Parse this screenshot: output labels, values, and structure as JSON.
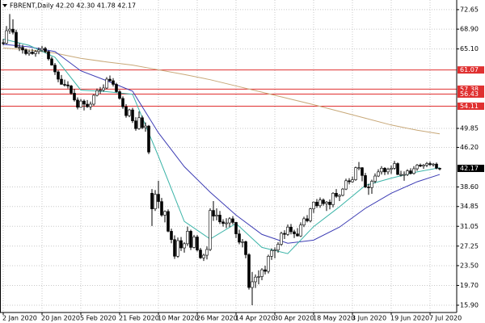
{
  "chart_data": {
    "type": "candlestick",
    "title": "FBRENT,Daily 42.20 42.30 41.78 42.17",
    "categories": [
      "2 Jan 2020",
      null,
      null,
      null,
      null,
      null,
      null,
      null,
      null,
      null,
      null,
      null,
      "20 Jan 2020",
      null,
      null,
      null,
      null,
      null,
      null,
      null,
      null,
      null,
      null,
      null,
      "5 Feb 2020",
      null,
      null,
      null,
      null,
      null,
      null,
      null,
      null,
      null,
      null,
      null,
      "21 Feb 2020",
      null,
      null,
      null,
      null,
      null,
      null,
      null,
      null,
      null,
      null,
      null,
      "10 Mar 2020",
      null,
      null,
      null,
      null,
      null,
      null,
      null,
      null,
      null,
      null,
      null,
      "26 Mar 2020",
      null,
      null,
      null,
      null,
      null,
      null,
      null,
      null,
      null,
      null,
      null,
      "14 Apr 2020",
      null,
      null,
      null,
      null,
      null,
      null,
      null,
      null,
      null,
      null,
      null,
      "30 Apr 2020",
      null,
      null,
      null,
      null,
      null,
      null,
      null,
      null,
      null,
      null,
      null,
      "18 May 2020",
      null,
      null,
      null,
      null,
      null,
      null,
      null,
      null,
      null,
      null,
      null,
      "3 Jun 2020",
      null,
      null,
      null,
      null,
      null,
      null,
      null,
      null,
      null,
      null,
      null,
      "19 Jun 2020",
      null,
      null,
      null,
      null,
      null,
      null,
      null,
      null,
      null,
      null,
      null,
      "7 Jul 2020",
      null,
      null,
      null
    ],
    "ohlc": [
      [
        66.3,
        67.0,
        65.8,
        66.2
      ],
      [
        66.2,
        69.5,
        66.0,
        68.6
      ],
      [
        68.6,
        71.8,
        68.0,
        68.9
      ],
      [
        68.9,
        70.8,
        67.9,
        68.3
      ],
      [
        68.3,
        68.8,
        65.3,
        65.4
      ],
      [
        65.4,
        66.2,
        64.7,
        65.4
      ],
      [
        65.4,
        65.9,
        64.2,
        64.9
      ],
      [
        64.9,
        65.2,
        63.9,
        64.2
      ],
      [
        64.2,
        64.9,
        63.8,
        64.5
      ],
      [
        64.5,
        65.1,
        64.0,
        64.2
      ],
      [
        64.2,
        64.9,
        63.6,
        64.6
      ],
      [
        64.6,
        65.4,
        64.1,
        64.9
      ],
      [
        64.9,
        65.7,
        64.5,
        65.2
      ],
      [
        65.2,
        65.5,
        64.3,
        64.6
      ],
      [
        64.6,
        64.8,
        62.9,
        63.2
      ],
      [
        63.2,
        63.6,
        61.9,
        62.0
      ],
      [
        62.0,
        62.4,
        60.1,
        60.7
      ],
      [
        60.7,
        61.0,
        58.7,
        59.3
      ],
      [
        59.3,
        60.1,
        58.3,
        58.3
      ],
      [
        58.3,
        59.2,
        57.9,
        58.2
      ],
      [
        58.2,
        58.9,
        57.5,
        58.0
      ],
      [
        58.0,
        58.2,
        56.3,
        56.6
      ],
      [
        56.6,
        57.4,
        55.0,
        55.3
      ],
      [
        55.3,
        55.8,
        53.5,
        53.9
      ],
      [
        53.9,
        55.5,
        53.8,
        55.1
      ],
      [
        55.1,
        55.4,
        53.3,
        54.5
      ],
      [
        54.5,
        55.3,
        53.8,
        54.0
      ],
      [
        54.0,
        55.0,
        53.4,
        54.5
      ],
      [
        54.5,
        56.4,
        54.2,
        56.2
      ],
      [
        56.2,
        57.5,
        56.0,
        57.1
      ],
      [
        57.1,
        57.8,
        56.5,
        57.2
      ],
      [
        57.2,
        58.3,
        56.9,
        57.6
      ],
      [
        57.6,
        59.7,
        57.4,
        59.3
      ],
      [
        59.3,
        60.0,
        58.8,
        59.0
      ],
      [
        59.0,
        59.5,
        57.9,
        58.3
      ],
      [
        58.3,
        58.6,
        56.7,
        56.9
      ],
      [
        56.9,
        57.2,
        55.4,
        55.6
      ],
      [
        55.6,
        56.0,
        53.6,
        54.0
      ],
      [
        54.0,
        54.5,
        51.9,
        52.3
      ],
      [
        52.3,
        53.6,
        52.0,
        53.4
      ],
      [
        53.4,
        53.8,
        50.9,
        51.3
      ],
      [
        51.3,
        52.0,
        49.4,
        49.8
      ],
      [
        49.8,
        53.1,
        49.6,
        51.9
      ],
      [
        51.9,
        52.3,
        49.7,
        50.0
      ],
      [
        50.0,
        51.0,
        49.2,
        50.3
      ],
      [
        50.3,
        50.5,
        44.9,
        45.3
      ],
      [
        37.4,
        38.2,
        31.1,
        34.4
      ],
      [
        34.4,
        38.0,
        34.0,
        37.2
      ],
      [
        37.2,
        39.8,
        34.5,
        35.8
      ],
      [
        35.8,
        36.5,
        32.9,
        33.2
      ],
      [
        33.2,
        34.1,
        31.8,
        33.9
      ],
      [
        33.9,
        34.3,
        29.9,
        30.1
      ],
      [
        30.1,
        30.6,
        27.8,
        28.5
      ],
      [
        28.5,
        29.3,
        24.8,
        25.3
      ],
      [
        25.3,
        28.9,
        25.0,
        28.3
      ],
      [
        28.3,
        29.0,
        26.3,
        26.9
      ],
      [
        26.9,
        28.0,
        26.0,
        27.7
      ],
      [
        27.7,
        31.0,
        27.3,
        30.1
      ],
      [
        30.1,
        30.4,
        26.5,
        27.0
      ],
      [
        27.0,
        29.4,
        26.8,
        29.0
      ],
      [
        29.0,
        29.4,
        26.2,
        26.5
      ],
      [
        26.5,
        26.9,
        24.8,
        25.0
      ],
      [
        25.0,
        25.8,
        24.4,
        25.5
      ],
      [
        25.5,
        27.2,
        24.7,
        26.6
      ],
      [
        26.6,
        34.5,
        26.3,
        34.1
      ],
      [
        34.1,
        35.9,
        32.1,
        33.0
      ],
      [
        33.0,
        34.5,
        32.2,
        33.2
      ],
      [
        33.2,
        34.0,
        31.5,
        31.9
      ],
      [
        31.9,
        32.4,
        31.0,
        31.6
      ],
      [
        31.6,
        32.6,
        30.7,
        31.7
      ],
      [
        31.7,
        32.8,
        30.9,
        32.5
      ],
      [
        32.5,
        33.0,
        31.4,
        31.8
      ],
      [
        31.8,
        31.9,
        28.8,
        29.6
      ],
      [
        29.6,
        30.4,
        27.6,
        28.0
      ],
      [
        28.0,
        28.6,
        27.0,
        28.1
      ],
      [
        28.1,
        28.3,
        24.9,
        25.6
      ],
      [
        25.6,
        25.9,
        18.9,
        19.3
      ],
      [
        19.3,
        22.3,
        15.9,
        20.4
      ],
      [
        20.4,
        21.8,
        19.2,
        21.3
      ],
      [
        21.3,
        22.6,
        19.9,
        21.4
      ],
      [
        21.4,
        23.0,
        20.7,
        22.7
      ],
      [
        22.7,
        23.5,
        21.8,
        22.4
      ],
      [
        22.4,
        25.6,
        22.0,
        25.3
      ],
      [
        25.3,
        26.8,
        24.6,
        26.4
      ],
      [
        26.4,
        27.0,
        24.9,
        26.5
      ],
      [
        26.5,
        28.0,
        26.0,
        27.6
      ],
      [
        27.6,
        30.0,
        27.3,
        29.7
      ],
      [
        29.7,
        30.3,
        28.6,
        29.5
      ],
      [
        29.5,
        31.4,
        29.2,
        30.9
      ],
      [
        30.9,
        31.5,
        29.5,
        30.0
      ],
      [
        30.0,
        30.4,
        28.8,
        29.6
      ],
      [
        29.6,
        30.7,
        29.1,
        29.2
      ],
      [
        29.2,
        31.8,
        29.0,
        31.3
      ],
      [
        31.3,
        32.9,
        30.9,
        32.5
      ],
      [
        32.5,
        33.2,
        31.8,
        32.1
      ],
      [
        32.1,
        34.6,
        31.8,
        34.4
      ],
      [
        34.4,
        35.8,
        33.6,
        35.7
      ],
      [
        35.7,
        36.3,
        34.6,
        35.0
      ],
      [
        35.0,
        36.6,
        34.6,
        36.1
      ],
      [
        36.1,
        36.4,
        35.0,
        35.4
      ],
      [
        35.4,
        35.9,
        34.0,
        35.7
      ],
      [
        35.7,
        36.2,
        34.3,
        35.2
      ],
      [
        35.2,
        37.6,
        34.7,
        37.4
      ],
      [
        37.4,
        38.2,
        36.5,
        36.8
      ],
      [
        36.8,
        37.2,
        35.9,
        37.0
      ],
      [
        37.0,
        38.4,
        36.8,
        38.2
      ],
      [
        38.2,
        40.2,
        38.0,
        39.8
      ],
      [
        39.8,
        40.3,
        39.1,
        39.6
      ],
      [
        39.6,
        40.6,
        39.4,
        40.0
      ],
      [
        40.0,
        42.5,
        39.8,
        42.3
      ],
      [
        42.3,
        43.4,
        41.8,
        42.3
      ],
      [
        42.3,
        42.4,
        39.7,
        40.8
      ],
      [
        40.8,
        41.3,
        38.4,
        38.6
      ],
      [
        38.6,
        39.2,
        37.1,
        38.5
      ],
      [
        38.5,
        40.0,
        37.3,
        39.7
      ],
      [
        39.7,
        41.2,
        39.3,
        40.7
      ],
      [
        40.7,
        42.0,
        40.5,
        41.5
      ],
      [
        41.5,
        42.6,
        41.0,
        42.2
      ],
      [
        42.2,
        42.4,
        40.9,
        41.5
      ],
      [
        41.5,
        42.3,
        41.0,
        42.0
      ],
      [
        42.0,
        42.7,
        41.1,
        42.2
      ],
      [
        42.2,
        43.6,
        41.9,
        43.1
      ],
      [
        43.1,
        43.3,
        40.9,
        41.0
      ],
      [
        41.0,
        41.7,
        40.6,
        41.0
      ],
      [
        41.0,
        41.6,
        39.8,
        41.0
      ],
      [
        41.0,
        42.0,
        40.7,
        41.7
      ],
      [
        41.7,
        42.2,
        41.0,
        41.2
      ],
      [
        41.2,
        42.6,
        41.0,
        42.1
      ],
      [
        42.1,
        43.0,
        41.7,
        42.8
      ],
      [
        42.8,
        43.1,
        42.4,
        42.6
      ],
      [
        42.6,
        43.0,
        42.1,
        42.8
      ],
      [
        42.8,
        43.4,
        42.4,
        43.1
      ],
      [
        43.1,
        43.5,
        42.6,
        42.9
      ],
      [
        42.9,
        43.2,
        42.5,
        43.0
      ],
      [
        43.0,
        43.3,
        42.0,
        42.2
      ],
      [
        42.2,
        42.3,
        41.78,
        42.17
      ]
    ],
    "lines": [
      {
        "color": "#c8a878",
        "x": [
          0,
          8,
          16,
          24,
          32,
          40,
          48,
          56,
          64,
          72,
          80,
          88,
          96,
          104,
          112,
          120,
          128,
          135
        ],
        "values": [
          65.3,
          64.9,
          64.3,
          63.3,
          62.6,
          62.0,
          61.1,
          60.2,
          59.2,
          58.0,
          56.8,
          55.6,
          54.4,
          53.1,
          51.8,
          50.5,
          49.5,
          48.8
        ]
      },
      {
        "color": "#3c3cb4",
        "x": [
          0,
          8,
          16,
          24,
          32,
          40,
          48,
          56,
          64,
          72,
          80,
          88,
          96,
          104,
          112,
          120,
          128,
          135
        ],
        "values": [
          66.0,
          65.5,
          64.6,
          60.9,
          59.0,
          57.0,
          49.0,
          42.5,
          37.6,
          33.2,
          29.5,
          27.8,
          28.4,
          30.9,
          34.5,
          37.4,
          39.6,
          41.0
        ]
      },
      {
        "color": "#3cb4a8",
        "x": [
          0,
          8,
          16,
          24,
          32,
          40,
          48,
          56,
          64,
          72,
          80,
          88,
          96,
          104,
          112,
          120,
          128,
          135
        ],
        "values": [
          67.0,
          65.8,
          63.5,
          57.2,
          56.9,
          56.4,
          44.5,
          32.0,
          28.6,
          31.6,
          27.0,
          25.8,
          31.0,
          34.8,
          38.9,
          40.3,
          41.5,
          42.3
        ]
      }
    ],
    "levels": [
      61.07,
      57.38,
      56.43,
      54.11
    ],
    "level_color": "#e03030",
    "ylim": [
      14.5,
      74.5
    ],
    "yticks": [
      72.65,
      {
        "value": 68.9,
        "label": "68.90"
      },
      {
        "value": 65.1,
        "label": "65.10"
      },
      49.85,
      {
        "value": 46.2,
        "label": "46.20"
      },
      {
        "value": 38.6,
        "label": "38.60"
      },
      34.85,
      31.05,
      27.25,
      {
        "value": 23.5,
        "label": "23.50"
      },
      {
        "value": 19.7,
        "label": "19.70"
      },
      {
        "value": 15.9,
        "label": "15.90"
      }
    ],
    "grid": true
  }
}
